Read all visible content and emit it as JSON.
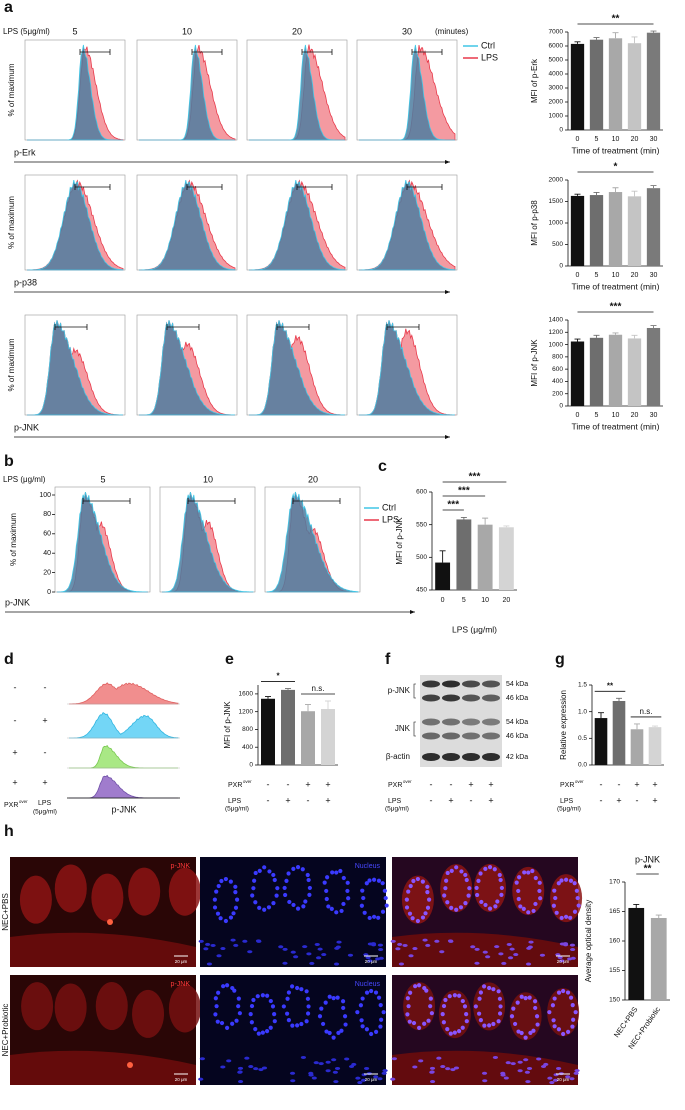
{
  "figure": {
    "a": {
      "label": "a",
      "treatment": "LPS (5μg/ml)",
      "times": [
        "5",
        "10",
        "20",
        "30"
      ],
      "time_unit": "(minutes)",
      "legend": [
        "Ctrl",
        "LPS"
      ],
      "y_label": "% of maximum",
      "markers": [
        "p-Erk",
        "p-p38",
        "p-JNK"
      ]
    },
    "b": {
      "label": "b",
      "treatment": "LPS (μg/ml)",
      "doses": [
        "5",
        "10",
        "20"
      ],
      "legend": [
        "Ctrl",
        "LPS"
      ],
      "y_label": "% of maximum",
      "y_ticks": [
        "0",
        "20",
        "40",
        "60",
        "80",
        "100"
      ],
      "marker": "p-JNK"
    },
    "c": {
      "label": "c"
    },
    "d": {
      "label": "d",
      "signs": [
        [
          "-",
          "-"
        ],
        [
          "-",
          "+"
        ],
        [
          "+",
          "-"
        ],
        [
          "+",
          "+"
        ]
      ],
      "pxr": "PXR",
      "pxr_sup": "over",
      "lps": "LPS",
      "lps_dose": "(5μg/ml)",
      "marker": "p-JNK"
    },
    "e": {
      "label": "e"
    },
    "f": {
      "label": "f",
      "bands": [
        "p-JNK",
        "JNK",
        "β-actin"
      ],
      "sizes": [
        "54 kDa",
        "46 kDa",
        "54 kDa",
        "46 kDa",
        "42 kDa"
      ],
      "condition_rows": [
        {
          "label": "PXR",
          "sup": "over",
          "signs": [
            "-",
            "-",
            "+",
            "+"
          ]
        },
        {
          "label": "LPS",
          "dose": "(5μg/ml)",
          "signs": [
            "-",
            "+",
            "-",
            "+"
          ]
        }
      ]
    },
    "g": {
      "label": "g"
    },
    "h": {
      "label": "h",
      "groups": [
        "NEC+PBS",
        "NEC+Probiotic"
      ],
      "stains": [
        "p-JNK",
        "Nucleus"
      ],
      "scale": "20 μm"
    }
  },
  "chart_data": [
    {
      "type": "bar",
      "y_label": "MFI of p-Erk",
      "x_label": "Time of treatment (min)",
      "categories": [
        "0",
        "5",
        "10",
        "20",
        "30"
      ],
      "values": [
        6150,
        6450,
        6550,
        6200,
        6950
      ],
      "errors": [
        150,
        150,
        400,
        450,
        120
      ],
      "colors": [
        "#111111",
        "#6e6e6e",
        "#a8a8a8",
        "#c4c4c4",
        "#7a7a7a"
      ],
      "ylim": [
        0,
        7000
      ],
      "yticks": [
        0,
        1000,
        2000,
        3000,
        4000,
        5000,
        6000,
        7000
      ],
      "significance": "**"
    },
    {
      "type": "bar",
      "y_label": "MFI of p-p38",
      "x_label": "Time of treatment (min)",
      "categories": [
        "0",
        "5",
        "10",
        "20",
        "30"
      ],
      "values": [
        1630,
        1650,
        1720,
        1620,
        1810
      ],
      "errors": [
        40,
        60,
        100,
        120,
        60
      ],
      "colors": [
        "#111111",
        "#6e6e6e",
        "#a8a8a8",
        "#c4c4c4",
        "#7a7a7a"
      ],
      "ylim": [
        0,
        2000
      ],
      "yticks": [
        0,
        500,
        1000,
        1500,
        2000
      ],
      "significance": "*"
    },
    {
      "type": "bar",
      "y_label": "MFI of p-JNK",
      "x_label": "Time of treatment (min)",
      "categories": [
        "0",
        "5",
        "10",
        "20",
        "30"
      ],
      "values": [
        1050,
        1110,
        1160,
        1100,
        1270
      ],
      "errors": [
        40,
        40,
        30,
        50,
        40
      ],
      "colors": [
        "#111111",
        "#6e6e6e",
        "#a8a8a8",
        "#c4c4c4",
        "#7a7a7a"
      ],
      "ylim": [
        0,
        1400
      ],
      "yticks": [
        0,
        200,
        400,
        600,
        800,
        1000,
        1200,
        1400
      ],
      "significance": "***"
    },
    {
      "type": "bar",
      "y_label": "MFI of p-JNK",
      "x_label": "LPS (μg/ml)",
      "categories": [
        "0",
        "5",
        "10",
        "20"
      ],
      "values": [
        492,
        558,
        550,
        546
      ],
      "errors": [
        18,
        3,
        10,
        2
      ],
      "colors": [
        "#111111",
        "#6e6e6e",
        "#a8a8a8",
        "#d4d4d4"
      ],
      "ylim": [
        450,
        600
      ],
      "yticks": [
        450,
        500,
        550,
        600
      ],
      "significance": [
        "***",
        "***",
        "***"
      ]
    },
    {
      "type": "bar",
      "y_label": "MFI of p-JNK",
      "categories": [
        null,
        null,
        null,
        null
      ],
      "values": [
        1490,
        1690,
        1210,
        1260
      ],
      "errors": [
        50,
        30,
        150,
        180
      ],
      "colors": [
        "#111111",
        "#6e6e6e",
        "#a8a8a8",
        "#d4d4d4"
      ],
      "ylim": [
        0,
        1800
      ],
      "yticks": [
        0,
        400,
        800,
        1200,
        1600
      ],
      "significance": [
        "*",
        "n.s."
      ],
      "condition_rows": [
        {
          "label": "PXR",
          "sup": "over",
          "signs": [
            "-",
            "-",
            "+",
            "+"
          ]
        },
        {
          "label": "LPS",
          "dose": "(5μg/ml)",
          "signs": [
            "-",
            "+",
            "-",
            "+"
          ]
        }
      ]
    },
    {
      "type": "bar",
      "y_label": "Relative expression",
      "categories": [
        null,
        null,
        null,
        null
      ],
      "values": [
        0.88,
        1.2,
        0.67,
        0.71
      ],
      "errors": [
        0.1,
        0.05,
        0.1,
        0.02
      ],
      "colors": [
        "#111111",
        "#6e6e6e",
        "#a8a8a8",
        "#d4d4d4"
      ],
      "ylim": [
        0,
        1.5
      ],
      "yticks": [
        {
          "value": 0,
          "label": "0.0"
        },
        {
          "value": 0.5,
          "label": "0.5"
        },
        {
          "value": 1,
          "label": "1.0"
        },
        {
          "value": 1.5,
          "label": "1.5"
        }
      ],
      "significance": [
        "**",
        "n.s."
      ],
      "condition_rows": [
        {
          "label": "PXR",
          "sup": "over",
          "signs": [
            "-",
            "-",
            "+",
            "+"
          ]
        },
        {
          "label": "LPS",
          "dose": "(5μg/ml)",
          "signs": [
            "-",
            "+",
            "-",
            "+"
          ]
        }
      ]
    },
    {
      "type": "bar",
      "title": "p-JNK",
      "y_label": "Average optical density",
      "categories": [
        "NEC+PBS",
        "NEC+Probiotic"
      ],
      "values": [
        165.6,
        163.9
      ],
      "errors": [
        0.6,
        0.5
      ],
      "colors": [
        "#111111",
        "#a8a8a8"
      ],
      "ylim": [
        150,
        170
      ],
      "yticks": [
        150,
        155,
        160,
        165,
        170
      ],
      "significance": "**"
    }
  ]
}
